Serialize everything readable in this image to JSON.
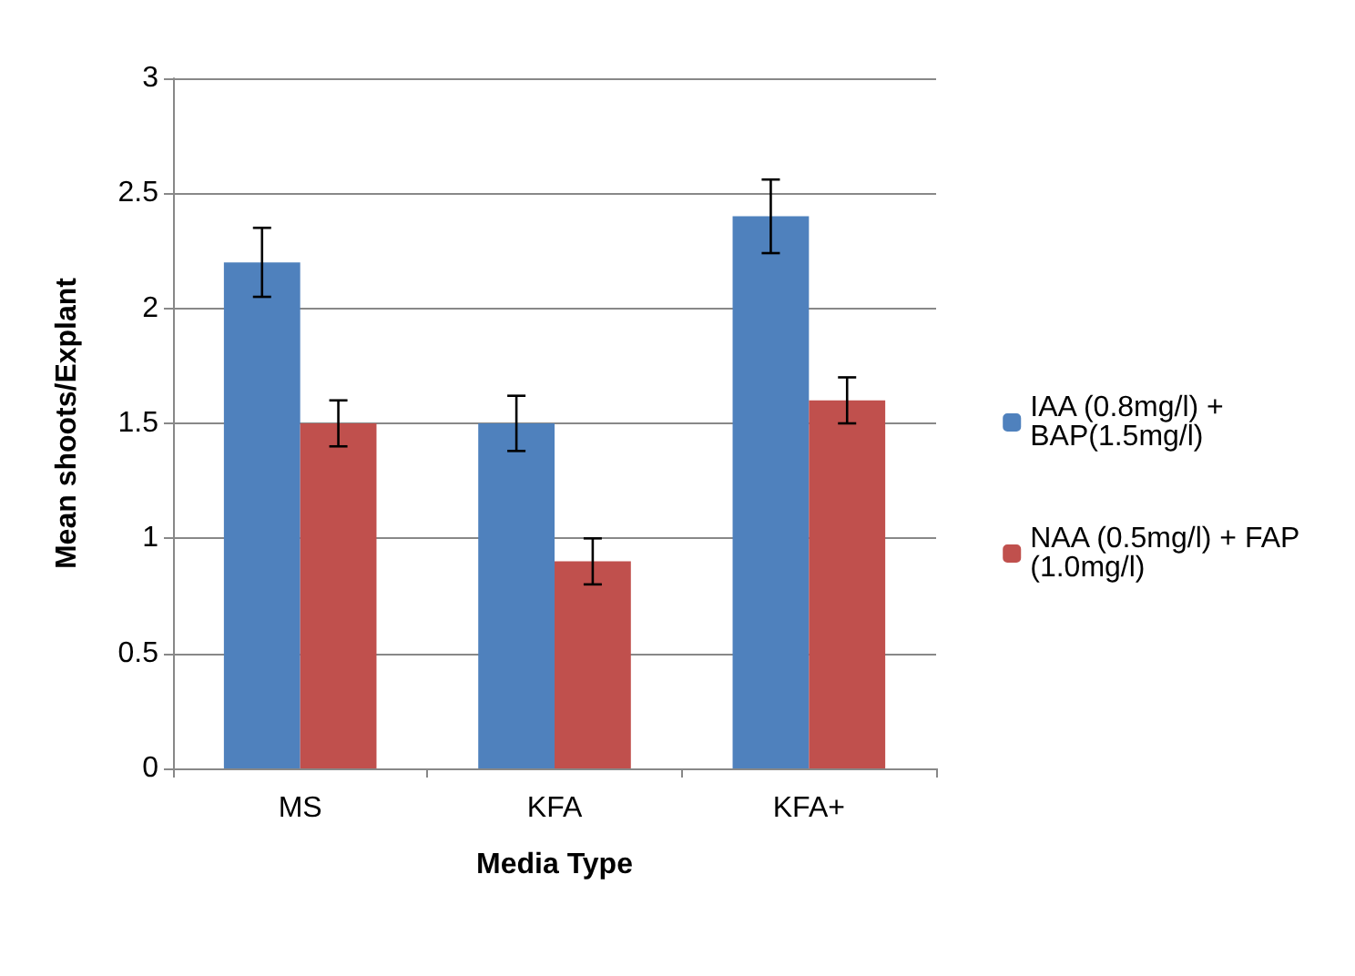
{
  "chart_data": {
    "type": "bar",
    "xlabel": "Media Type",
    "ylabel": "Mean shoots/Explant",
    "categories": [
      "MS",
      "KFA",
      "KFA+"
    ],
    "series": [
      {
        "name": "IAA (0.8mg/l) + BAP(1.5mg/l)",
        "color": "#4f81bd",
        "values": [
          2.2,
          1.5,
          2.4
        ],
        "errors": [
          0.15,
          0.12,
          0.16
        ]
      },
      {
        "name": "NAA (0.5mg/l) + FAP (1.0mg/l)",
        "color": "#c0504d",
        "values": [
          1.5,
          0.9,
          1.6
        ],
        "errors": [
          0.1,
          0.1,
          0.1
        ]
      }
    ],
    "ylim": [
      0,
      3
    ],
    "yticks": [
      0,
      0.5,
      1,
      1.5,
      2,
      2.5,
      3
    ],
    "grid": "y",
    "legend": "right"
  }
}
